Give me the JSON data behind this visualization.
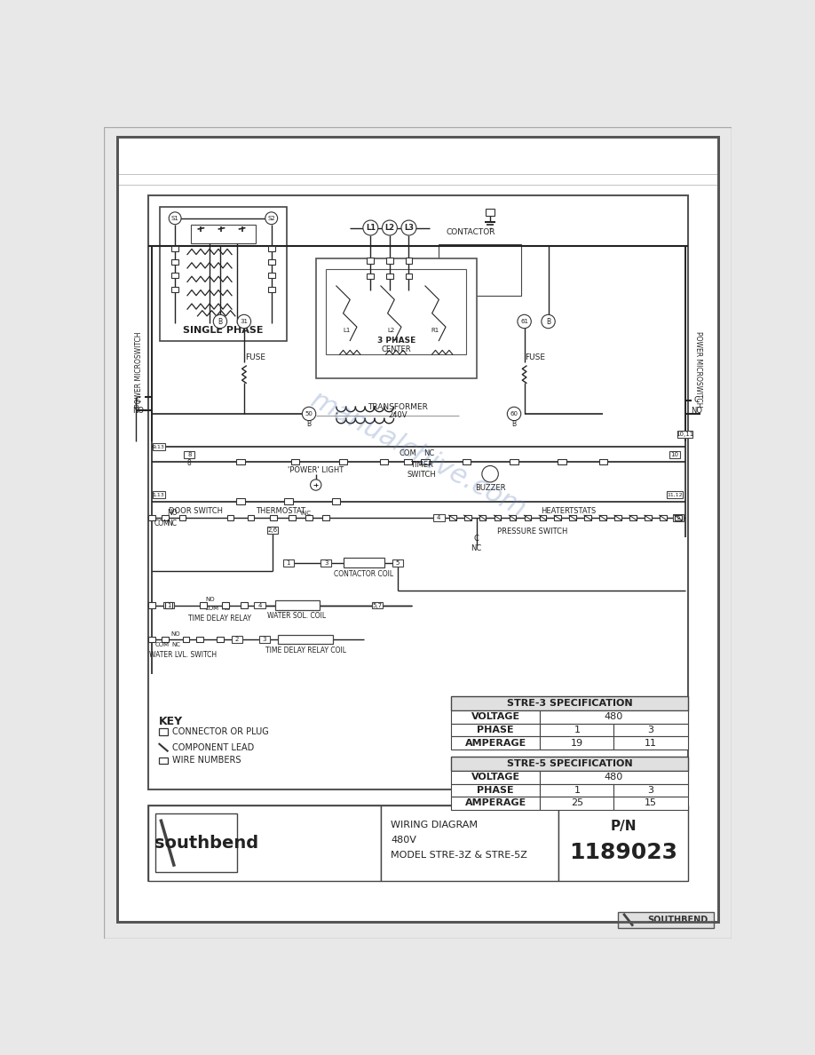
{
  "page_bg": "#e8e8e8",
  "paper_bg": "#ffffff",
  "lc": "#222222",
  "gray": "#888888",
  "blue_wm": "#6080b8",
  "spec3_title": "STRE-3 SPECIFICATION",
  "spec5_title": "STRE-5 SPECIFICATION",
  "spec3_rows": [
    [
      "VOLTAGE",
      "480"
    ],
    [
      "PHASE",
      "1",
      "3"
    ],
    [
      "AMPERAGE",
      "19",
      "11"
    ]
  ],
  "spec5_rows": [
    [
      "VOLTAGE",
      "480"
    ],
    [
      "PHASE",
      "1",
      "3"
    ],
    [
      "AMPERAGE",
      "25",
      "15"
    ]
  ],
  "title_lines": [
    "WIRING DIAGRAM",
    "480V",
    "MODEL STRE-3Z & STRE-5Z"
  ],
  "pn": "1189023",
  "single_phase": "SINGLE PHASE",
  "contactor": "CONTACTOR",
  "transformer": "TRANSFORMER",
  "v240": "240V",
  "fuse": "FUSE",
  "power_ms": "POWER MICROSWITCH",
  "door_sw": "DOOR SWITCH",
  "thermostat": "THERMOSTAT",
  "pressure_sw": "PRESSURE SWITCH",
  "contactor_coil": "CONTACTOR COIL",
  "time_delay": "TIME DELAY RELAY",
  "time_delay_coil": "TIME DELAY RELAY COIL",
  "water_sol": "WATER SOL. COIL",
  "water_lvl": "WATER LVL. SWITCH",
  "buzzer": "BUZZER",
  "heaterstats": "HEATERTSTATS",
  "power_light": "'POWER' LIGHT",
  "timer_sw": "TIMER\nSWITCH",
  "three_phase": "3 PHASE",
  "center": "CENTER",
  "key_title": "KEY",
  "key1": "CONNECTOR OR PLUG",
  "key2": "COMPONENT LEAD",
  "key3": "WIRE NUMBERS"
}
